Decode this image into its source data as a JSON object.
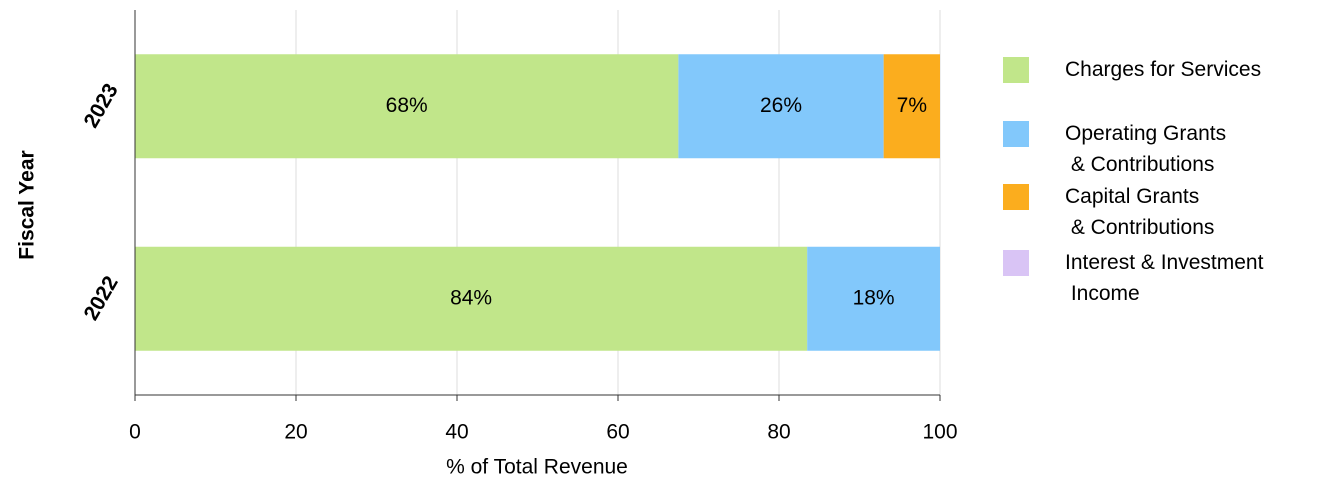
{
  "chart_data": {
    "type": "stacked-barh",
    "categories": [
      "2023",
      "2022"
    ],
    "series": [
      {
        "name": "Charges for Services",
        "color": "#c1e68a",
        "values": [
          67.5,
          83.5
        ],
        "value_labels": [
          "68%",
          "84%"
        ]
      },
      {
        "name": "Operating Grants\n & Contributions",
        "color": "#82c8fb",
        "values": [
          25.5,
          17.5
        ],
        "value_labels": [
          "26%",
          "18%"
        ]
      },
      {
        "name": "Capital Grants\n & Contributions",
        "color": "#fbad1e",
        "values": [
          7,
          null
        ],
        "value_labels": [
          "7%",
          null
        ]
      },
      {
        "name": "Interest & Investment\n Income",
        "color": "#d9c4f5",
        "values": [
          null,
          null
        ],
        "value_labels": [
          null,
          null
        ]
      }
    ],
    "xlim": [
      0,
      100
    ],
    "xticks": [
      0,
      20,
      40,
      60,
      80,
      100
    ],
    "grid": true,
    "xlabel": "% of Total Revenue",
    "ylabel": "Fiscal Year",
    "legend": "right"
  }
}
